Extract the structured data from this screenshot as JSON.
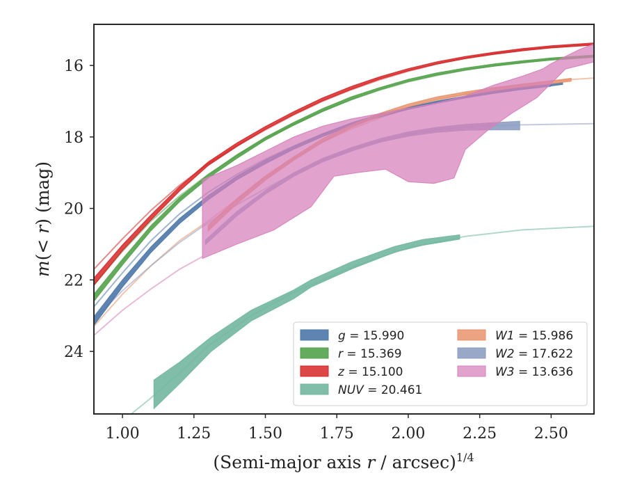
{
  "chart_data": {
    "type": "line",
    "title": "",
    "xlabel_main": "(Semi-major axis ",
    "xlabel_var": "r",
    "xlabel_tail": " / arcsec)",
    "xlabel_sup": "1/4",
    "ylabel_pre": "m(< ",
    "ylabel_var": "r",
    "ylabel_post": ") (mag)",
    "xlim": [
      0.9,
      2.65
    ],
    "ylim": [
      25.75,
      14.85
    ],
    "y_inverted": true,
    "xticks": [
      1.0,
      1.25,
      1.5,
      1.75,
      2.0,
      2.25,
      2.5
    ],
    "xtick_labels": [
      "1.00",
      "1.25",
      "1.50",
      "1.75",
      "2.00",
      "2.25",
      "2.50"
    ],
    "yticks": [
      16,
      18,
      20,
      22,
      24
    ],
    "ytick_labels": [
      "16",
      "18",
      "20",
      "22",
      "24"
    ],
    "grid": false,
    "legend_position": "lower-right",
    "series": [
      {
        "name": "g = 15.990",
        "label_var": "g",
        "label_val": "= 15.990",
        "color": "#4c78a8",
        "fill_opacity": 0.9,
        "legend_col": 0,
        "measured": [
          [
            0.9,
            23.15
          ],
          [
            1.0,
            22.1
          ],
          [
            1.1,
            21.15
          ],
          [
            1.2,
            20.35
          ],
          [
            1.3,
            19.7
          ],
          [
            1.4,
            19.15
          ],
          [
            1.5,
            18.7
          ],
          [
            1.6,
            18.3
          ],
          [
            1.7,
            17.95
          ],
          [
            1.8,
            17.65
          ],
          [
            1.9,
            17.4
          ],
          [
            2.0,
            17.2
          ],
          [
            2.1,
            17.03
          ],
          [
            2.2,
            16.88
          ],
          [
            2.3,
            16.75
          ],
          [
            2.4,
            16.64
          ],
          [
            2.5,
            16.54
          ],
          [
            2.54,
            16.5
          ]
        ],
        "width": [
          0.12,
          0.1,
          0.08,
          0.07,
          0.06,
          0.05,
          0.05,
          0.04,
          0.04,
          0.04,
          0.04,
          0.03,
          0.03,
          0.03,
          0.03,
          0.03,
          0.03,
          0.03
        ],
        "model": [
          [
            0.9,
            22.75
          ],
          [
            1.0,
            21.8
          ],
          [
            1.1,
            20.9
          ],
          [
            1.2,
            20.15
          ],
          [
            1.3,
            19.55
          ],
          [
            1.4,
            19.05
          ],
          [
            1.5,
            18.62
          ],
          [
            1.6,
            18.25
          ],
          [
            1.7,
            17.92
          ],
          [
            1.8,
            17.63
          ],
          [
            1.9,
            17.39
          ],
          [
            2.0,
            17.19
          ],
          [
            2.1,
            17.02
          ],
          [
            2.2,
            16.88
          ],
          [
            2.3,
            16.76
          ],
          [
            2.4,
            16.66
          ],
          [
            2.5,
            16.58
          ]
        ]
      },
      {
        "name": "r = 15.369",
        "label_var": "r",
        "label_val": "= 15.369",
        "color": "#54a24b",
        "fill_opacity": 0.9,
        "legend_col": 0,
        "measured": [
          [
            0.9,
            22.5
          ],
          [
            1.0,
            21.5
          ],
          [
            1.1,
            20.55
          ],
          [
            1.2,
            19.75
          ],
          [
            1.3,
            19.1
          ],
          [
            1.4,
            18.55
          ],
          [
            1.5,
            18.05
          ],
          [
            1.6,
            17.63
          ],
          [
            1.7,
            17.25
          ],
          [
            1.8,
            16.92
          ],
          [
            1.9,
            16.65
          ],
          [
            2.0,
            16.42
          ],
          [
            2.1,
            16.24
          ],
          [
            2.2,
            16.1
          ],
          [
            2.3,
            15.99
          ],
          [
            2.4,
            15.9
          ],
          [
            2.5,
            15.82
          ],
          [
            2.65,
            15.74
          ]
        ],
        "width": [
          0.1,
          0.08,
          0.07,
          0.06,
          0.05,
          0.05,
          0.04,
          0.04,
          0.04,
          0.04,
          0.03,
          0.03,
          0.03,
          0.03,
          0.03,
          0.03,
          0.03,
          0.03
        ],
        "model": [
          [
            0.9,
            22.15
          ],
          [
            1.0,
            21.2
          ],
          [
            1.1,
            20.35
          ],
          [
            1.2,
            19.65
          ],
          [
            1.3,
            19.05
          ],
          [
            1.4,
            18.52
          ],
          [
            1.5,
            18.05
          ],
          [
            1.6,
            17.64
          ],
          [
            1.7,
            17.28
          ],
          [
            1.8,
            16.96
          ],
          [
            1.9,
            16.69
          ],
          [
            2.0,
            16.46
          ],
          [
            2.1,
            16.28
          ],
          [
            2.2,
            16.13
          ],
          [
            2.3,
            16.01
          ],
          [
            2.4,
            15.91
          ],
          [
            2.5,
            15.83
          ],
          [
            2.65,
            15.75
          ]
        ]
      },
      {
        "name": "z = 15.100",
        "label_var": "z",
        "label_val": "= 15.100",
        "color": "#d62728",
        "fill_opacity": 0.85,
        "legend_col": 0,
        "measured": [
          [
            0.9,
            22.05
          ],
          [
            1.0,
            21.1
          ],
          [
            1.1,
            20.25
          ],
          [
            1.2,
            19.45
          ],
          [
            1.3,
            18.75
          ],
          [
            1.4,
            18.22
          ],
          [
            1.5,
            17.75
          ],
          [
            1.6,
            17.33
          ],
          [
            1.7,
            16.95
          ],
          [
            1.8,
            16.63
          ],
          [
            1.9,
            16.35
          ],
          [
            2.0,
            16.12
          ],
          [
            2.1,
            15.93
          ],
          [
            2.2,
            15.78
          ],
          [
            2.3,
            15.66
          ],
          [
            2.4,
            15.56
          ],
          [
            2.5,
            15.48
          ],
          [
            2.65,
            15.4
          ]
        ],
        "width": [
          0.1,
          0.08,
          0.07,
          0.06,
          0.05,
          0.05,
          0.04,
          0.04,
          0.04,
          0.04,
          0.03,
          0.03,
          0.03,
          0.03,
          0.03,
          0.03,
          0.03,
          0.03
        ],
        "model": [
          [
            0.9,
            21.7
          ],
          [
            1.0,
            20.85
          ],
          [
            1.1,
            20.05
          ],
          [
            1.2,
            19.35
          ],
          [
            1.3,
            18.75
          ],
          [
            1.4,
            18.25
          ],
          [
            1.5,
            17.8
          ],
          [
            1.6,
            17.38
          ],
          [
            1.7,
            17.0
          ],
          [
            1.8,
            16.68
          ],
          [
            1.9,
            16.4
          ],
          [
            2.0,
            16.16
          ],
          [
            2.1,
            15.96
          ],
          [
            2.2,
            15.8
          ],
          [
            2.3,
            15.67
          ],
          [
            2.4,
            15.57
          ],
          [
            2.5,
            15.49
          ],
          [
            2.65,
            15.41
          ]
        ]
      },
      {
        "name": "NUV = 20.461",
        "label_var": "NUV",
        "label_val": "= 20.461",
        "color": "#72b7a1",
        "fill_opacity": 0.9,
        "legend_col": 0,
        "measured": [
          [
            1.11,
            25.2
          ],
          [
            1.2,
            24.6
          ],
          [
            1.31,
            23.8
          ],
          [
            1.45,
            23.0
          ],
          [
            1.6,
            22.4
          ],
          [
            1.66,
            22.1
          ],
          [
            1.8,
            21.6
          ],
          [
            1.95,
            21.15
          ],
          [
            2.05,
            20.95
          ],
          [
            2.18,
            20.8
          ]
        ],
        "width": [
          0.4,
          0.3,
          0.2,
          0.15,
          0.12,
          0.1,
          0.1,
          0.08,
          0.08,
          0.06
        ],
        "model": [
          [
            0.9,
            26.6
          ],
          [
            1.0,
            25.95
          ],
          [
            1.1,
            25.3
          ],
          [
            1.2,
            24.6
          ],
          [
            1.3,
            23.85
          ],
          [
            1.45,
            23.0
          ],
          [
            1.6,
            22.35
          ],
          [
            1.8,
            21.65
          ],
          [
            2.0,
            21.1
          ],
          [
            2.2,
            20.78
          ],
          [
            2.4,
            20.6
          ],
          [
            2.65,
            20.5
          ]
        ]
      },
      {
        "name": "W1 = 15.986",
        "label_var": "W1",
        "label_val": "= 15.986",
        "color": "#e8936b",
        "fill_opacity": 0.85,
        "legend_col": 1,
        "measured": [
          [
            1.3,
            20.55
          ],
          [
            1.4,
            19.8
          ],
          [
            1.5,
            19.15
          ],
          [
            1.6,
            18.6
          ],
          [
            1.7,
            18.1
          ],
          [
            1.8,
            17.7
          ],
          [
            1.9,
            17.38
          ],
          [
            2.0,
            17.12
          ],
          [
            2.1,
            16.92
          ],
          [
            2.2,
            16.78
          ],
          [
            2.3,
            16.66
          ],
          [
            2.4,
            16.56
          ],
          [
            2.5,
            16.47
          ],
          [
            2.57,
            16.4
          ]
        ],
        "width": [
          0.08,
          0.07,
          0.06,
          0.05,
          0.05,
          0.04,
          0.04,
          0.04,
          0.04,
          0.04,
          0.04,
          0.04,
          0.04,
          0.04
        ],
        "model": [
          [
            0.9,
            23.3
          ],
          [
            1.0,
            22.4
          ],
          [
            1.1,
            21.6
          ],
          [
            1.2,
            20.9
          ],
          [
            1.3,
            20.35
          ],
          [
            1.4,
            19.75
          ],
          [
            1.5,
            19.15
          ],
          [
            1.6,
            18.6
          ],
          [
            1.7,
            18.15
          ],
          [
            1.8,
            17.78
          ],
          [
            1.9,
            17.47
          ],
          [
            2.0,
            17.2
          ],
          [
            2.1,
            16.98
          ],
          [
            2.2,
            16.8
          ],
          [
            2.3,
            16.65
          ],
          [
            2.4,
            16.53
          ],
          [
            2.5,
            16.43
          ],
          [
            2.65,
            16.35
          ]
        ]
      },
      {
        "name": "W2 = 17.622",
        "label_var": "W2",
        "label_val": "= 17.622",
        "color": "#8f9ec2",
        "fill_opacity": 0.9,
        "legend_col": 1,
        "measured": [
          [
            1.29,
            20.95
          ],
          [
            1.4,
            20.15
          ],
          [
            1.5,
            19.55
          ],
          [
            1.6,
            19.05
          ],
          [
            1.7,
            18.65
          ],
          [
            1.8,
            18.35
          ],
          [
            1.9,
            18.1
          ],
          [
            2.0,
            17.92
          ],
          [
            2.1,
            17.8
          ],
          [
            2.2,
            17.73
          ],
          [
            2.3,
            17.7
          ],
          [
            2.39,
            17.68
          ]
        ],
        "width": [
          0.06,
          0.06,
          0.05,
          0.05,
          0.05,
          0.05,
          0.05,
          0.06,
          0.07,
          0.08,
          0.1,
          0.12
        ],
        "model": [
          [
            0.9,
            23.1
          ],
          [
            1.0,
            22.3
          ],
          [
            1.1,
            21.6
          ],
          [
            1.2,
            20.95
          ],
          [
            1.3,
            20.4
          ],
          [
            1.4,
            19.9
          ],
          [
            1.5,
            19.45
          ],
          [
            1.6,
            19.02
          ],
          [
            1.7,
            18.65
          ],
          [
            1.8,
            18.35
          ],
          [
            1.9,
            18.1
          ],
          [
            2.0,
            17.92
          ],
          [
            2.1,
            17.8
          ],
          [
            2.2,
            17.72
          ],
          [
            2.4,
            17.66
          ],
          [
            2.65,
            17.63
          ]
        ]
      },
      {
        "name": "W3 = 13.636",
        "label_var": "W3",
        "label_val": "= 13.636",
        "color": "#d680ba",
        "fill_opacity": 0.72,
        "legend_col": 1,
        "band_upper": [
          [
            1.28,
            19.2
          ],
          [
            1.4,
            18.8
          ],
          [
            1.5,
            18.4
          ],
          [
            1.6,
            18.0
          ],
          [
            1.7,
            17.7
          ],
          [
            1.8,
            17.5
          ],
          [
            1.9,
            17.35
          ],
          [
            2.0,
            17.2
          ],
          [
            2.1,
            17.05
          ],
          [
            2.2,
            16.85
          ],
          [
            2.3,
            16.55
          ],
          [
            2.4,
            16.3
          ],
          [
            2.47,
            16.1
          ],
          [
            2.5,
            15.95
          ],
          [
            2.55,
            15.75
          ],
          [
            2.6,
            15.55
          ],
          [
            2.65,
            15.4
          ]
        ],
        "band_lower": [
          [
            1.28,
            21.4
          ],
          [
            1.4,
            21.0
          ],
          [
            1.53,
            20.6
          ],
          [
            1.66,
            19.95
          ],
          [
            1.74,
            19.1
          ],
          [
            1.82,
            19.0
          ],
          [
            1.92,
            18.9
          ],
          [
            2.0,
            19.25
          ],
          [
            2.09,
            19.3
          ],
          [
            2.16,
            19.15
          ],
          [
            2.2,
            18.35
          ],
          [
            2.28,
            17.8
          ],
          [
            2.36,
            17.35
          ],
          [
            2.45,
            16.9
          ],
          [
            2.5,
            16.5
          ],
          [
            2.55,
            16.1
          ],
          [
            2.6,
            16.0
          ],
          [
            2.65,
            15.9
          ]
        ],
        "model": [
          [
            0.9,
            23.55
          ],
          [
            1.0,
            22.85
          ],
          [
            1.1,
            22.25
          ],
          [
            1.2,
            21.7
          ],
          [
            1.28,
            21.35
          ]
        ]
      }
    ]
  }
}
